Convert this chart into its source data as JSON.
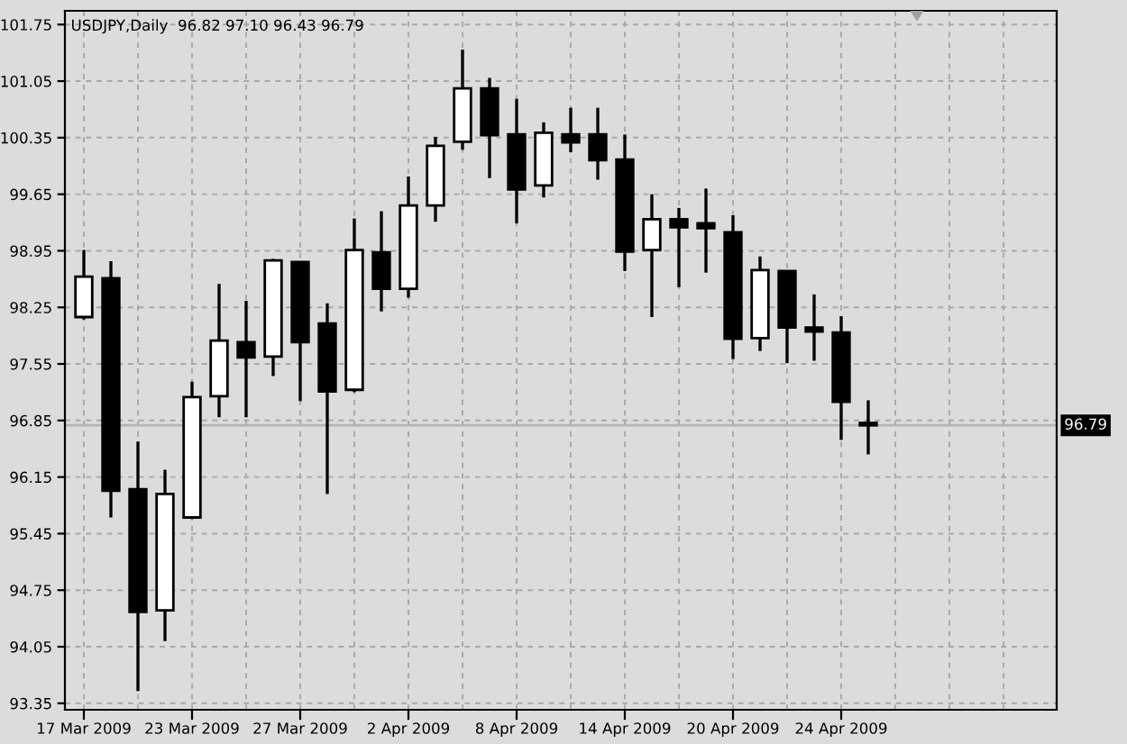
{
  "chart_data": {
    "type": "candlestick",
    "title": "USDJPY,Daily  96.82 97.10 96.43 96.79",
    "categories": [
      "17 Mar 2009",
      null,
      null,
      null,
      "23 Mar 2009",
      null,
      null,
      null,
      "27 Mar 2009",
      null,
      null,
      null,
      "2 Apr 2009",
      null,
      null,
      null,
      "8 Apr 2009",
      null,
      null,
      null,
      "14 Apr 2009",
      null,
      null,
      null,
      "20 Apr 2009",
      null,
      null,
      null,
      "24 Apr 2009",
      null
    ],
    "ohlc": [
      [
        98.13,
        98.96,
        98.1,
        98.63
      ],
      [
        98.61,
        98.82,
        95.65,
        95.98
      ],
      [
        96.0,
        96.59,
        93.5,
        94.48
      ],
      [
        94.5,
        96.24,
        94.12,
        95.94
      ],
      [
        95.65,
        97.33,
        95.63,
        97.14
      ],
      [
        97.15,
        98.54,
        96.89,
        97.84
      ],
      [
        97.82,
        98.33,
        96.89,
        97.63
      ],
      [
        97.64,
        98.85,
        97.4,
        98.83
      ],
      [
        98.81,
        98.82,
        97.09,
        97.82
      ],
      [
        98.05,
        98.3,
        95.94,
        97.21
      ],
      [
        97.23,
        99.35,
        97.2,
        98.96
      ],
      [
        98.93,
        99.44,
        98.2,
        98.48
      ],
      [
        98.48,
        99.87,
        98.37,
        99.51
      ],
      [
        99.51,
        100.36,
        99.31,
        100.25
      ],
      [
        100.3,
        101.44,
        100.2,
        100.96
      ],
      [
        100.96,
        101.09,
        99.85,
        100.38
      ],
      [
        100.39,
        100.83,
        99.29,
        99.71
      ],
      [
        99.76,
        100.54,
        99.61,
        100.41
      ],
      [
        100.39,
        100.72,
        100.17,
        100.29
      ],
      [
        100.39,
        100.72,
        99.83,
        100.07
      ],
      [
        100.08,
        100.39,
        98.7,
        98.94
      ],
      [
        98.96,
        99.65,
        98.13,
        99.34
      ],
      [
        99.34,
        99.48,
        98.5,
        99.24
      ],
      [
        99.29,
        99.72,
        98.68,
        99.23
      ],
      [
        99.18,
        99.39,
        97.61,
        97.86
      ],
      [
        97.87,
        98.88,
        97.71,
        98.71
      ],
      [
        98.7,
        98.71,
        97.56,
        98.0
      ],
      [
        98.0,
        98.41,
        97.59,
        97.95
      ],
      [
        97.94,
        98.14,
        96.61,
        97.08
      ],
      [
        96.82,
        97.1,
        96.43,
        96.79
      ]
    ],
    "colors": [
      "#ffffff",
      "#000000",
      "#000000",
      "#ffffff",
      "#ffffff",
      "#ffffff",
      "#000000",
      "#ffffff",
      "#000000",
      "#000000",
      "#ffffff",
      "#000000",
      "#ffffff",
      "#ffffff",
      "#ffffff",
      "#000000",
      "#000000",
      "#ffffff",
      "#000000",
      "#000000",
      "#000000",
      "#ffffff",
      "#000000",
      "#000000",
      "#000000",
      "#ffffff",
      "#000000",
      "#000000",
      "#000000",
      "#000000"
    ],
    "ylim": [
      93.27,
      101.92
    ],
    "yticks": [
      93.35,
      94.05,
      94.75,
      95.45,
      96.15,
      96.85,
      97.55,
      98.25,
      98.95,
      99.65,
      100.35,
      101.05,
      101.75
    ],
    "ref_lines": [
      {
        "axis": "y",
        "value": 96.79,
        "label": "96.79",
        "color": "#b4b4b4"
      }
    ],
    "grid": true
  }
}
